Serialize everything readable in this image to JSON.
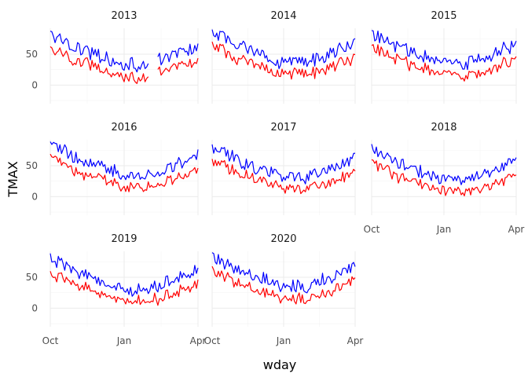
{
  "chart_data": {
    "type": "line",
    "facet_by": "year",
    "panels": [
      {
        "title": "2013"
      },
      {
        "title": "2014"
      },
      {
        "title": "2015"
      },
      {
        "title": "2016"
      },
      {
        "title": "2017"
      },
      {
        "title": "2018"
      },
      {
        "title": "2019"
      },
      {
        "title": "2020"
      }
    ],
    "xlabel": "wday",
    "ylabel": "TMAX",
    "x_ticks": [
      "Oct",
      "Jan",
      "Apr"
    ],
    "y_ticks": [
      0,
      50
    ],
    "ylim": [
      -30,
      92
    ],
    "x_range_days": [
      0,
      184
    ],
    "grid": true,
    "series_colors": {
      "upper": "#0000ff",
      "lower": "#ff0000"
    },
    "series_profiles": {
      "upper_knots_days": [
        0,
        30,
        60,
        90,
        120,
        150,
        184
      ],
      "upper_values": [
        82,
        62,
        48,
        33,
        32,
        47,
        63
      ],
      "lower_knots_days": [
        0,
        30,
        60,
        90,
        120,
        150,
        184
      ],
      "lower_values": [
        60,
        40,
        28,
        15,
        12,
        25,
        40
      ],
      "amplitude_upper": 10,
      "amplitude_lower": 8,
      "panel_offsets": [
        0,
        4,
        2,
        3,
        -1,
        -6,
        -2,
        2
      ],
      "gaps": [
        {
          "panel": "2013",
          "from_day": 122,
          "to_day": 134
        }
      ]
    }
  }
}
